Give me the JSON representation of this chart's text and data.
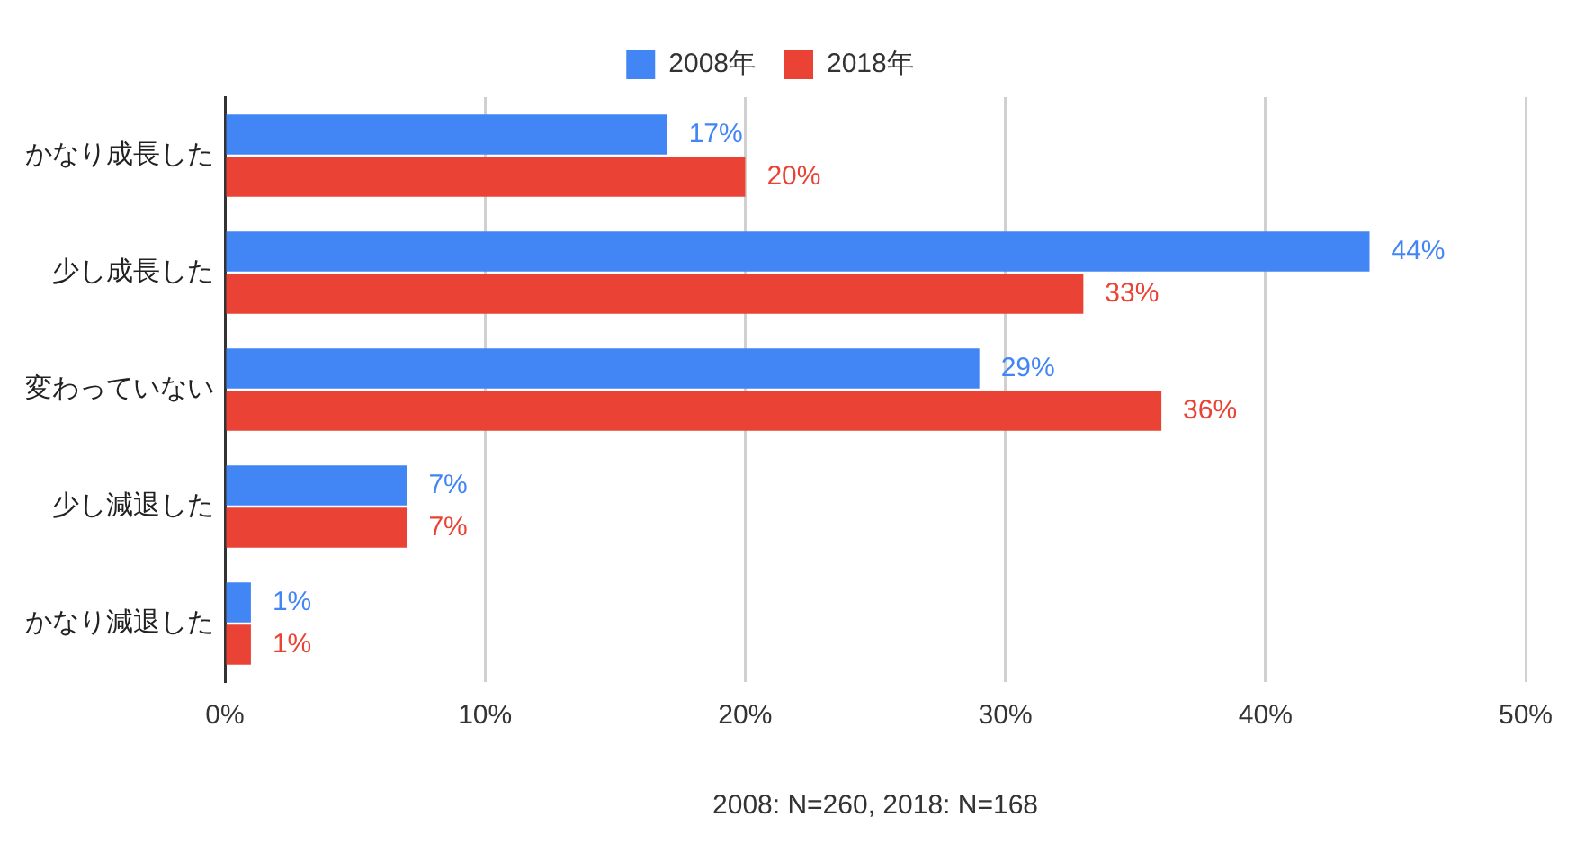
{
  "chart_data": {
    "type": "bar",
    "orientation": "horizontal",
    "categories": [
      "かなり成長した",
      "少し成長した",
      "変わっていない",
      "少し減退した",
      "かなり減退した"
    ],
    "series": [
      {
        "name": "2008年",
        "color": "#4285f4",
        "values": [
          17,
          44,
          29,
          7,
          1
        ],
        "value_labels": [
          "17%",
          "44%",
          "29%",
          "7%",
          "1%"
        ]
      },
      {
        "name": "2018年",
        "color": "#ea4335",
        "values": [
          20,
          33,
          36,
          7,
          1
        ],
        "value_labels": [
          "20%",
          "33%",
          "36%",
          "7%",
          "1%"
        ]
      }
    ],
    "xlim": [
      0,
      50
    ],
    "xticks": [
      {
        "value": 0,
        "label": "0%"
      },
      {
        "value": 10,
        "label": "10%"
      },
      {
        "value": 20,
        "label": "20%"
      },
      {
        "value": 30,
        "label": "30%"
      },
      {
        "value": 40,
        "label": "40%"
      },
      {
        "value": 50,
        "label": "50%"
      }
    ],
    "xlabel": "2008: N=260, 2018: N=168",
    "grid": "x",
    "legend": "top"
  }
}
